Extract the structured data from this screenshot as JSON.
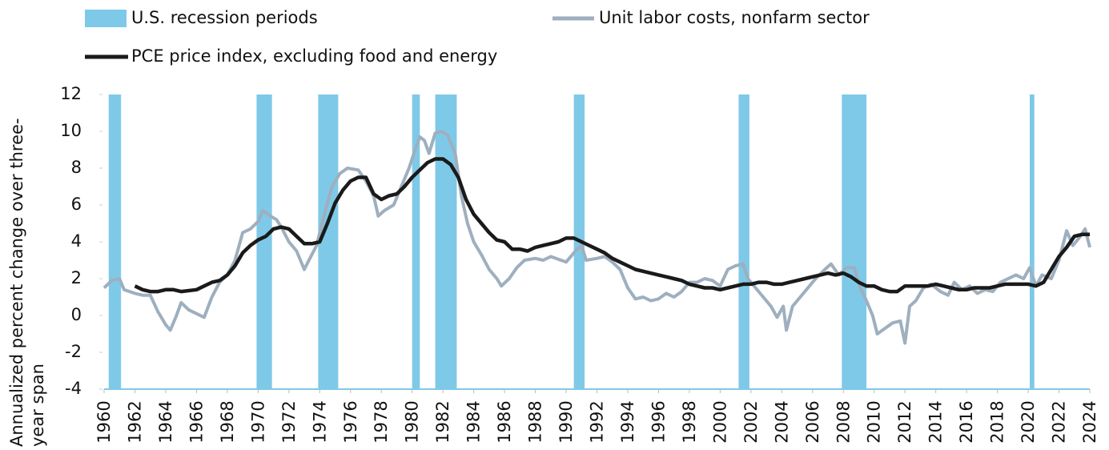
{
  "chart_data": {
    "type": "line",
    "ylabel": [
      "Annualized percent change over three-",
      "year span"
    ],
    "recessions": {
      "name": "U.S. recession periods",
      "color": "#7fc9e8",
      "periods": [
        [
          1960.3,
          1961.1
        ],
        [
          1969.9,
          1970.9
        ],
        [
          1973.9,
          1975.2
        ],
        [
          1980.0,
          1980.5
        ],
        [
          1981.5,
          1982.9
        ],
        [
          1990.5,
          1991.2
        ],
        [
          2001.2,
          2001.9
        ],
        [
          2007.9,
          2009.5
        ],
        [
          2020.1,
          2020.4
        ]
      ]
    },
    "series": [
      {
        "name": "Unit labor costs, nonfarm sector",
        "color": "#9eafbf",
        "x": [
          1960,
          1960.5,
          1961,
          1961.3,
          1962,
          1962.5,
          1963,
          1963.5,
          1964,
          1964.3,
          1964.7,
          1965,
          1965.5,
          1966,
          1966.5,
          1967,
          1967.5,
          1968,
          1968.5,
          1969,
          1969.5,
          1970,
          1970.3,
          1970.8,
          1971.2,
          1971.5,
          1972,
          1972.5,
          1973,
          1973.3,
          1973.8,
          1974.3,
          1974.8,
          1975.3,
          1975.8,
          1976.5,
          1977,
          1977.5,
          1977.8,
          1978.2,
          1978.8,
          1979.2,
          1979.8,
          1980.2,
          1980.5,
          1980.8,
          1981.1,
          1981.5,
          1981.9,
          1982.3,
          1982.8,
          1983.2,
          1983.6,
          1984,
          1984.5,
          1985,
          1985.5,
          1985.8,
          1986.3,
          1986.8,
          1987.3,
          1988,
          1988.5,
          1989,
          1990,
          1990.6,
          1991,
          1991.3,
          1992,
          1992.5,
          1993,
          1993.5,
          1994,
          1994.5,
          1995,
          1995.5,
          1996,
          1996.5,
          1997,
          1997.5,
          1998,
          1998.5,
          1999,
          1999.5,
          2000,
          2000.5,
          2001,
          2001.5,
          2001.8,
          2002.3,
          2002.8,
          2003.3,
          2003.7,
          2004.1,
          2004.3,
          2004.7,
          2005.2,
          2005.6,
          2006.2,
          2006.8,
          2007.2,
          2007.7,
          2008.2,
          2008.7,
          2009.1,
          2009.5,
          2009.9,
          2010.2,
          2010.7,
          2011.2,
          2011.7,
          2012,
          2012.3,
          2012.7,
          2013.2,
          2013.7,
          2014.3,
          2014.8,
          2015.2,
          2015.7,
          2016.2,
          2016.7,
          2017.2,
          2017.7,
          2018.2,
          2018.7,
          2019.2,
          2019.7,
          2020.1,
          2020.5,
          2020.9,
          2021.5,
          2022,
          2022.5,
          2022.9,
          2023.3,
          2023.7,
          2024
        ],
        "values": [
          1.5,
          1.9,
          2.0,
          1.4,
          1.2,
          1.1,
          1.1,
          0.2,
          -0.5,
          -0.8,
          0.0,
          0.7,
          0.3,
          0.1,
          -0.1,
          1.0,
          1.8,
          2.2,
          3.0,
          4.5,
          4.7,
          5.1,
          5.7,
          5.4,
          5.2,
          4.8,
          4.0,
          3.5,
          2.5,
          3.0,
          3.8,
          5.5,
          7.0,
          7.7,
          8.0,
          7.9,
          7.3,
          6.5,
          5.4,
          5.7,
          6.0,
          6.8,
          8.0,
          9.0,
          9.7,
          9.5,
          8.8,
          9.9,
          10.0,
          9.8,
          8.8,
          6.5,
          5.0,
          4.0,
          3.3,
          2.5,
          2.0,
          1.6,
          2.0,
          2.6,
          3.0,
          3.1,
          3.0,
          3.2,
          2.9,
          3.5,
          3.8,
          3.0,
          3.1,
          3.2,
          2.9,
          2.5,
          1.5,
          0.9,
          1.0,
          0.8,
          0.9,
          1.2,
          1.0,
          1.3,
          1.8,
          1.8,
          2.0,
          1.9,
          1.6,
          2.5,
          2.7,
          2.8,
          2.0,
          1.5,
          1.0,
          0.5,
          -0.1,
          0.5,
          -0.8,
          0.5,
          1.0,
          1.4,
          2.0,
          2.5,
          2.8,
          2.2,
          2.6,
          2.6,
          1.5,
          0.8,
          0.0,
          -1.0,
          -0.7,
          -0.4,
          -0.3,
          -1.5,
          0.5,
          0.8,
          1.5,
          1.7,
          1.3,
          1.1,
          1.8,
          1.4,
          1.6,
          1.2,
          1.4,
          1.3,
          1.8,
          2.0,
          2.2,
          2.0,
          2.6,
          1.6,
          2.2,
          2.0,
          3.0,
          4.6,
          3.8,
          4.2,
          4.7,
          3.7
        ]
      },
      {
        "name": "PCE price index, excluding food and energy",
        "color": "#1a1a1a",
        "x": [
          1962,
          1962.5,
          1963,
          1963.5,
          1964,
          1964.5,
          1965,
          1966,
          1966.5,
          1967,
          1967.5,
          1968,
          1968.5,
          1969,
          1969.5,
          1970,
          1970.5,
          1971,
          1971.5,
          1972,
          1972.5,
          1973,
          1973.5,
          1974,
          1974.5,
          1975,
          1975.5,
          1976,
          1976.5,
          1977,
          1977.5,
          1978,
          1978.5,
          1979,
          1979.5,
          1980,
          1980.5,
          1981,
          1981.5,
          1982,
          1982.5,
          1983,
          1983.5,
          1984,
          1984.5,
          1985,
          1985.5,
          1986,
          1986.5,
          1987,
          1987.5,
          1988,
          1988.5,
          1989,
          1989.5,
          1990,
          1990.5,
          1991,
          1991.5,
          1992,
          1992.5,
          1993,
          1993.5,
          1994,
          1994.5,
          1995,
          1996,
          1996.5,
          1997,
          1997.5,
          1998,
          1998.5,
          1999,
          1999.5,
          2000,
          2000.5,
          2001,
          2001.5,
          2002,
          2002.5,
          2003,
          2003.5,
          2004,
          2004.5,
          2005,
          2005.5,
          2006,
          2006.5,
          2007,
          2007.5,
          2008,
          2008.5,
          2009,
          2009.5,
          2010,
          2010.5,
          2011,
          2011.5,
          2012,
          2012.5,
          2013,
          2013.5,
          2014,
          2014.5,
          2015,
          2015.5,
          2016,
          2016.5,
          2017,
          2017.5,
          2018,
          2018.5,
          2019,
          2019.5,
          2020,
          2020.5,
          2021,
          2021.5,
          2022,
          2022.5,
          2023,
          2023.5,
          2024
        ],
        "values": [
          1.6,
          1.4,
          1.3,
          1.3,
          1.4,
          1.4,
          1.3,
          1.4,
          1.6,
          1.8,
          1.9,
          2.2,
          2.7,
          3.4,
          3.8,
          4.1,
          4.3,
          4.7,
          4.8,
          4.7,
          4.3,
          3.9,
          3.9,
          4.0,
          5.0,
          6.1,
          6.8,
          7.3,
          7.5,
          7.5,
          6.6,
          6.3,
          6.5,
          6.6,
          7.0,
          7.5,
          7.9,
          8.3,
          8.5,
          8.5,
          8.2,
          7.5,
          6.3,
          5.5,
          5.0,
          4.5,
          4.1,
          4.0,
          3.6,
          3.6,
          3.5,
          3.7,
          3.8,
          3.9,
          4.0,
          4.2,
          4.2,
          4.0,
          3.8,
          3.6,
          3.4,
          3.1,
          2.9,
          2.7,
          2.5,
          2.4,
          2.2,
          2.1,
          2.0,
          1.9,
          1.7,
          1.6,
          1.5,
          1.5,
          1.4,
          1.5,
          1.6,
          1.7,
          1.7,
          1.8,
          1.8,
          1.7,
          1.7,
          1.8,
          1.9,
          2.0,
          2.1,
          2.2,
          2.3,
          2.2,
          2.3,
          2.1,
          1.8,
          1.6,
          1.6,
          1.4,
          1.3,
          1.3,
          1.6,
          1.6,
          1.6,
          1.6,
          1.7,
          1.6,
          1.5,
          1.4,
          1.4,
          1.5,
          1.5,
          1.5,
          1.6,
          1.7,
          1.7,
          1.7,
          1.7,
          1.6,
          1.8,
          2.5,
          3.2,
          3.7,
          4.3,
          4.4,
          4.4
        ]
      }
    ],
    "xlim": [
      1960,
      2024
    ],
    "xticks": [
      1960,
      1962,
      1964,
      1966,
      1968,
      1970,
      1972,
      1974,
      1976,
      1978,
      1980,
      1982,
      1984,
      1986,
      1988,
      1990,
      1992,
      1994,
      1996,
      1998,
      2000,
      2002,
      2004,
      2006,
      2008,
      2010,
      2012,
      2014,
      2016,
      2018,
      2020,
      2022,
      2024
    ],
    "ylim": [
      -4,
      12
    ],
    "yticks": [
      -4,
      -2,
      0,
      2,
      4,
      6,
      8,
      10,
      12
    ],
    "grid": false
  }
}
